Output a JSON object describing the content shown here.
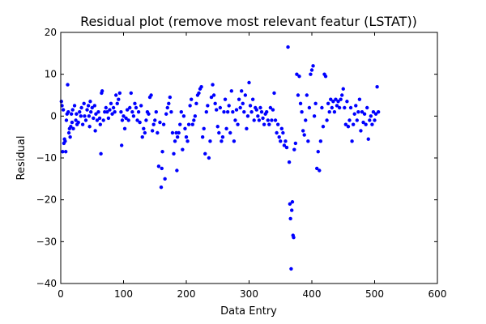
{
  "chart_data": {
    "type": "scatter",
    "title": "Residual plot (remove most relevant featur (LSTAT))",
    "xlabel": "Data Entry",
    "ylabel": "Residual",
    "xlim": [
      0,
      600
    ],
    "ylim": [
      -40,
      20
    ],
    "xticks": [
      0,
      100,
      200,
      300,
      400,
      500,
      600
    ],
    "yticks": [
      -40,
      -30,
      -20,
      -10,
      0,
      10,
      20
    ],
    "xtick_labels": [
      "0",
      "100",
      "200",
      "300",
      "400",
      "500",
      "600"
    ],
    "ytick_labels": [
      "−40",
      "−30",
      "−20",
      "−10",
      "0",
      "10",
      "20"
    ],
    "grid": false,
    "marker_color": "#0000ff",
    "series": [
      {
        "points": [
          [
            1,
            3.5
          ],
          [
            2,
            2.5
          ],
          [
            3,
            -8.5
          ],
          [
            4,
            1.5
          ],
          [
            5,
            -6.5
          ],
          [
            6,
            -5.5
          ],
          [
            7,
            -6
          ],
          [
            8,
            -8.5
          ],
          [
            9,
            -1
          ],
          [
            10,
            0.5
          ],
          [
            11,
            7.5
          ],
          [
            12,
            1
          ],
          [
            13,
            -4
          ],
          [
            14,
            -3
          ],
          [
            15,
            -5
          ],
          [
            16,
            -2.5
          ],
          [
            17,
            0.5
          ],
          [
            18,
            -1.5
          ],
          [
            19,
            1.5
          ],
          [
            20,
            -3
          ],
          [
            22,
            2.5
          ],
          [
            24,
            -1
          ],
          [
            25,
            0.5
          ],
          [
            26,
            -2
          ],
          [
            28,
            -1.5
          ],
          [
            30,
            1
          ],
          [
            32,
            0
          ],
          [
            33,
            2
          ],
          [
            35,
            -2
          ],
          [
            37,
            3
          ],
          [
            38,
            0
          ],
          [
            40,
            -1
          ],
          [
            42,
            1.5
          ],
          [
            44,
            2.5
          ],
          [
            45,
            0
          ],
          [
            46,
            -2.5
          ],
          [
            47,
            3.5
          ],
          [
            48,
            1
          ],
          [
            50,
            2
          ],
          [
            52,
            -0.5
          ],
          [
            54,
            2.5
          ],
          [
            55,
            -3.5
          ],
          [
            56,
            0.5
          ],
          [
            58,
            -1
          ],
          [
            60,
            1
          ],
          [
            62,
            -0.5
          ],
          [
            63,
            -2
          ],
          [
            64,
            -9
          ],
          [
            65,
            5.5
          ],
          [
            66,
            6
          ],
          [
            68,
            -1
          ],
          [
            70,
            1
          ],
          [
            72,
            2
          ],
          [
            74,
            1
          ],
          [
            76,
            -0.5
          ],
          [
            78,
            1.5
          ],
          [
            80,
            3
          ],
          [
            82,
            0.5
          ],
          [
            84,
            2
          ],
          [
            86,
            1
          ],
          [
            88,
            5
          ],
          [
            90,
            3
          ],
          [
            92,
            4
          ],
          [
            94,
            5.5
          ],
          [
            96,
            1
          ],
          [
            97,
            -7
          ],
          [
            98,
            -1
          ],
          [
            100,
            0
          ],
          [
            102,
            -3
          ],
          [
            104,
            -0.5
          ],
          [
            106,
            1.5
          ],
          [
            108,
            -1
          ],
          [
            110,
            2
          ],
          [
            112,
            5.5
          ],
          [
            114,
            1
          ],
          [
            116,
            0
          ],
          [
            118,
            3
          ],
          [
            120,
            2
          ],
          [
            122,
            -1
          ],
          [
            124,
            1
          ],
          [
            126,
            -1.5
          ],
          [
            128,
            2.5
          ],
          [
            130,
            -5
          ],
          [
            132,
            -3
          ],
          [
            134,
            -4
          ],
          [
            136,
            -1
          ],
          [
            138,
            1
          ],
          [
            140,
            0.5
          ],
          [
            142,
            4.5
          ],
          [
            144,
            5
          ],
          [
            146,
            -3.5
          ],
          [
            148,
            -2
          ],
          [
            150,
            -1
          ],
          [
            152,
            1
          ],
          [
            154,
            -4
          ],
          [
            156,
            -12
          ],
          [
            158,
            -1.5
          ],
          [
            160,
            -17
          ],
          [
            161,
            -12.5
          ],
          [
            162,
            -8.5
          ],
          [
            164,
            -2
          ],
          [
            166,
            -15
          ],
          [
            168,
            0.5
          ],
          [
            170,
            2
          ],
          [
            172,
            3
          ],
          [
            174,
            4.5
          ],
          [
            176,
            1
          ],
          [
            178,
            -4
          ],
          [
            180,
            -9
          ],
          [
            182,
            -6
          ],
          [
            184,
            -4
          ],
          [
            185,
            -13
          ],
          [
            186,
            -5
          ],
          [
            188,
            -4
          ],
          [
            190,
            -2
          ],
          [
            192,
            1
          ],
          [
            194,
            -8
          ],
          [
            196,
            0
          ],
          [
            198,
            -3
          ],
          [
            200,
            -5
          ],
          [
            202,
            -6
          ],
          [
            204,
            -2
          ],
          [
            206,
            2.5
          ],
          [
            208,
            4
          ],
          [
            210,
            -2
          ],
          [
            212,
            -1
          ],
          [
            214,
            0
          ],
          [
            216,
            3
          ],
          [
            218,
            5
          ],
          [
            220,
            5.5
          ],
          [
            222,
            6.5
          ],
          [
            224,
            7
          ],
          [
            226,
            -5
          ],
          [
            228,
            -3
          ],
          [
            230,
            -9
          ],
          [
            232,
            1
          ],
          [
            234,
            2.5
          ],
          [
            236,
            -10
          ],
          [
            238,
            -6
          ],
          [
            240,
            4.5
          ],
          [
            242,
            7.5
          ],
          [
            244,
            5
          ],
          [
            246,
            3
          ],
          [
            248,
            1.5
          ],
          [
            250,
            -2.5
          ],
          [
            252,
            -4
          ],
          [
            254,
            2
          ],
          [
            256,
            -6
          ],
          [
            258,
            -5
          ],
          [
            260,
            1
          ],
          [
            262,
            4
          ],
          [
            264,
            -3
          ],
          [
            266,
            1
          ],
          [
            268,
            2.5
          ],
          [
            270,
            -4
          ],
          [
            272,
            6
          ],
          [
            274,
            1
          ],
          [
            276,
            -6
          ],
          [
            278,
            -1
          ],
          [
            280,
            1.5
          ],
          [
            282,
            -2
          ],
          [
            284,
            4
          ],
          [
            286,
            2
          ],
          [
            288,
            6
          ],
          [
            290,
            3
          ],
          [
            292,
            1
          ],
          [
            294,
            5
          ],
          [
            296,
            -3
          ],
          [
            298,
            0
          ],
          [
            300,
            8
          ],
          [
            302,
            2.5
          ],
          [
            304,
            1
          ],
          [
            306,
            4
          ],
          [
            308,
            -1
          ],
          [
            310,
            2
          ],
          [
            312,
            1.5
          ],
          [
            314,
            0
          ],
          [
            316,
            -1
          ],
          [
            318,
            2
          ],
          [
            320,
            1
          ],
          [
            322,
            -0.5
          ],
          [
            324,
            -2
          ],
          [
            326,
            0.5
          ],
          [
            328,
            1
          ],
          [
            330,
            -1
          ],
          [
            332,
            -2
          ],
          [
            334,
            2
          ],
          [
            336,
            -1
          ],
          [
            338,
            1.5
          ],
          [
            340,
            5.5
          ],
          [
            342,
            -1
          ],
          [
            344,
            -4
          ],
          [
            346,
            -2
          ],
          [
            348,
            -5
          ],
          [
            350,
            -6
          ],
          [
            352,
            -3
          ],
          [
            354,
            -4
          ],
          [
            356,
            -7
          ],
          [
            358,
            -6
          ],
          [
            360,
            -7.5
          ],
          [
            362,
            16.5
          ],
          [
            364,
            -11
          ],
          [
            365,
            -21
          ],
          [
            366,
            -24.5
          ],
          [
            367,
            -36.5
          ],
          [
            368,
            -22.5
          ],
          [
            369,
            -20.5
          ],
          [
            370,
            -28.5
          ],
          [
            371,
            -29
          ],
          [
            372,
            -8
          ],
          [
            374,
            -6.5
          ],
          [
            376,
            10
          ],
          [
            378,
            5
          ],
          [
            380,
            9.5
          ],
          [
            382,
            3
          ],
          [
            384,
            1
          ],
          [
            386,
            -3.5
          ],
          [
            388,
            -4.5
          ],
          [
            390,
            -1
          ],
          [
            392,
            5
          ],
          [
            394,
            -6
          ],
          [
            396,
            2
          ],
          [
            398,
            10
          ],
          [
            400,
            11
          ],
          [
            402,
            12
          ],
          [
            404,
            0
          ],
          [
            406,
            3
          ],
          [
            408,
            -12.5
          ],
          [
            410,
            -8.5
          ],
          [
            412,
            -13
          ],
          [
            414,
            -6
          ],
          [
            416,
            2
          ],
          [
            418,
            -2.5
          ],
          [
            420,
            10
          ],
          [
            422,
            9.5
          ],
          [
            424,
            -1
          ],
          [
            426,
            3
          ],
          [
            428,
            1
          ],
          [
            430,
            4
          ],
          [
            432,
            2
          ],
          [
            434,
            3.5
          ],
          [
            436,
            1
          ],
          [
            438,
            4
          ],
          [
            440,
            2.5
          ],
          [
            442,
            3.5
          ],
          [
            444,
            2
          ],
          [
            446,
            4
          ],
          [
            448,
            5
          ],
          [
            450,
            6.5
          ],
          [
            452,
            2
          ],
          [
            454,
            -2
          ],
          [
            456,
            3.5
          ],
          [
            458,
            -2.5
          ],
          [
            460,
            -1
          ],
          [
            462,
            2
          ],
          [
            464,
            -6
          ],
          [
            466,
            -2
          ],
          [
            468,
            0.5
          ],
          [
            470,
            2.5
          ],
          [
            472,
            -1
          ],
          [
            474,
            1
          ],
          [
            476,
            4
          ],
          [
            478,
            -3.5
          ],
          [
            480,
            1
          ],
          [
            482,
            -1.5
          ],
          [
            484,
            0.5
          ],
          [
            486,
            -2
          ],
          [
            488,
            2
          ],
          [
            490,
            -5.5
          ],
          [
            492,
            -1
          ],
          [
            494,
            0
          ],
          [
            496,
            -2
          ],
          [
            498,
            1
          ],
          [
            500,
            -1
          ],
          [
            502,
            0.5
          ],
          [
            504,
            7
          ],
          [
            506,
            1
          ]
        ]
      }
    ]
  }
}
